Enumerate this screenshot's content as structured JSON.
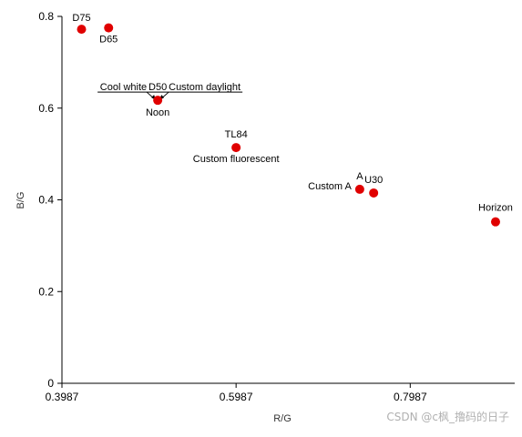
{
  "chart_data": {
    "type": "scatter",
    "title": "",
    "xlabel": "R/G",
    "ylabel": "B/G",
    "xlim": [
      0.3987,
      0.9187
    ],
    "ylim": [
      0,
      0.8
    ],
    "xticks": [
      0.3987,
      0.5987,
      0.7987
    ],
    "xtick_labels": [
      "0.3987",
      "0.5987",
      "0.7987"
    ],
    "yticks": [
      0,
      0.2,
      0.4,
      0.6,
      0.8
    ],
    "ytick_labels": [
      "0",
      "0.2",
      "0.4",
      "0.6",
      "0.8"
    ],
    "grid": false,
    "marker_color": "#e00000",
    "points": [
      {
        "label": "D75",
        "x": 0.4212,
        "y": 0.772
      },
      {
        "label": "D65",
        "x": 0.4523,
        "y": 0.775
      },
      {
        "label": "D50",
        "x": 0.5087,
        "y": 0.617
      },
      {
        "label": "TL84",
        "x": 0.5987,
        "y": 0.514
      },
      {
        "label": "A",
        "x": 0.7407,
        "y": 0.423
      },
      {
        "label": "U30",
        "x": 0.7567,
        "y": 0.415
      },
      {
        "label": "Horizon",
        "x": 0.8967,
        "y": 0.352
      }
    ],
    "annotations": [
      {
        "text": "Noon",
        "x": 0.5087,
        "y": 0.617
      },
      {
        "text": "Custom fluorescent",
        "x": 0.5987,
        "y": 0.514
      },
      {
        "text": "Custom A",
        "x": 0.7407,
        "y": 0.423
      },
      {
        "text": "Cool white",
        "x": 0.5087,
        "y": 0.617
      },
      {
        "text": "Custom daylight",
        "x": 0.5087,
        "y": 0.617
      }
    ]
  },
  "watermark": "CSDN @c枫_撸码的日子"
}
